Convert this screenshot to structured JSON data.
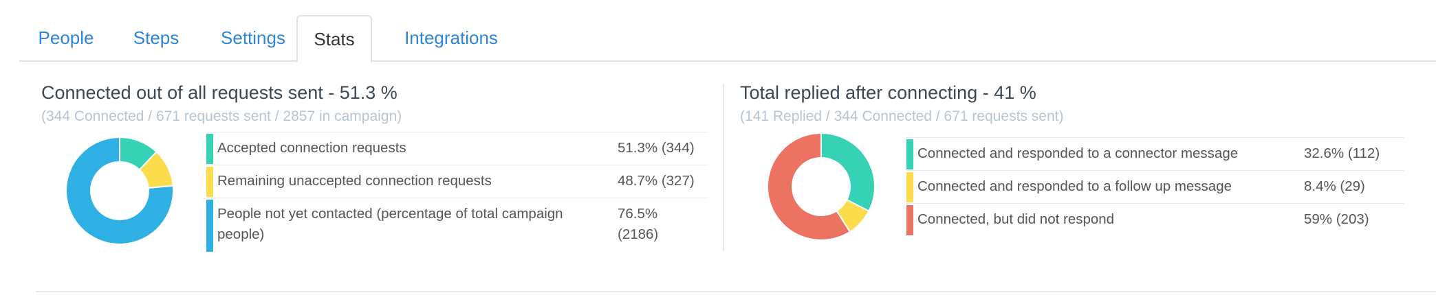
{
  "tabs": [
    {
      "label": "People",
      "active": false
    },
    {
      "label": "Steps",
      "active": false
    },
    {
      "label": "Settings",
      "active": false
    },
    {
      "label": "Stats",
      "active": true
    },
    {
      "label": "Integrations",
      "active": false
    }
  ],
  "colors": {
    "teal": "#35d2b5",
    "yellow": "#fcdc4d",
    "blue": "#2fb0e5",
    "salmon": "#ec7361",
    "link": "#2f86d8"
  },
  "connected": {
    "title": "Connected out of all requests sent - 51.3 %",
    "subtitle": "(344 Connected / 671 requests sent / 2857 in campaign)",
    "legend": [
      {
        "label": "Accepted connection requests",
        "value": "51.3% (344)",
        "color": "teal"
      },
      {
        "label": "Remaining unaccepted connection requests",
        "value": "48.7% (327)",
        "color": "yellow"
      },
      {
        "label": "People not yet contacted (percentage of total campaign people)",
        "value": "76.5% (2186)",
        "color": "blue"
      }
    ],
    "chart_data": {
      "type": "pie",
      "donut": true,
      "categories": [
        "Accepted connection requests",
        "Remaining unaccepted connection requests",
        "People not yet contacted"
      ],
      "values": [
        344,
        327,
        2186
      ]
    }
  },
  "replied": {
    "title": "Total replied after connecting - 41 %",
    "subtitle": "(141 Replied / 344 Connected / 671 requests sent)",
    "legend": [
      {
        "label": "Connected and responded to a connector message",
        "value": "32.6% (112)",
        "color": "teal"
      },
      {
        "label": "Connected and responded to a follow up message",
        "value": "8.4% (29)",
        "color": "yellow"
      },
      {
        "label": "Connected, but did not respond",
        "value": "59% (203)",
        "color": "salmon"
      }
    ],
    "chart_data": {
      "type": "pie",
      "donut": true,
      "categories": [
        "Connected and responded to a connector message",
        "Connected and responded to a follow up message",
        "Connected, but did not respond"
      ],
      "values": [
        112,
        29,
        203
      ]
    }
  }
}
